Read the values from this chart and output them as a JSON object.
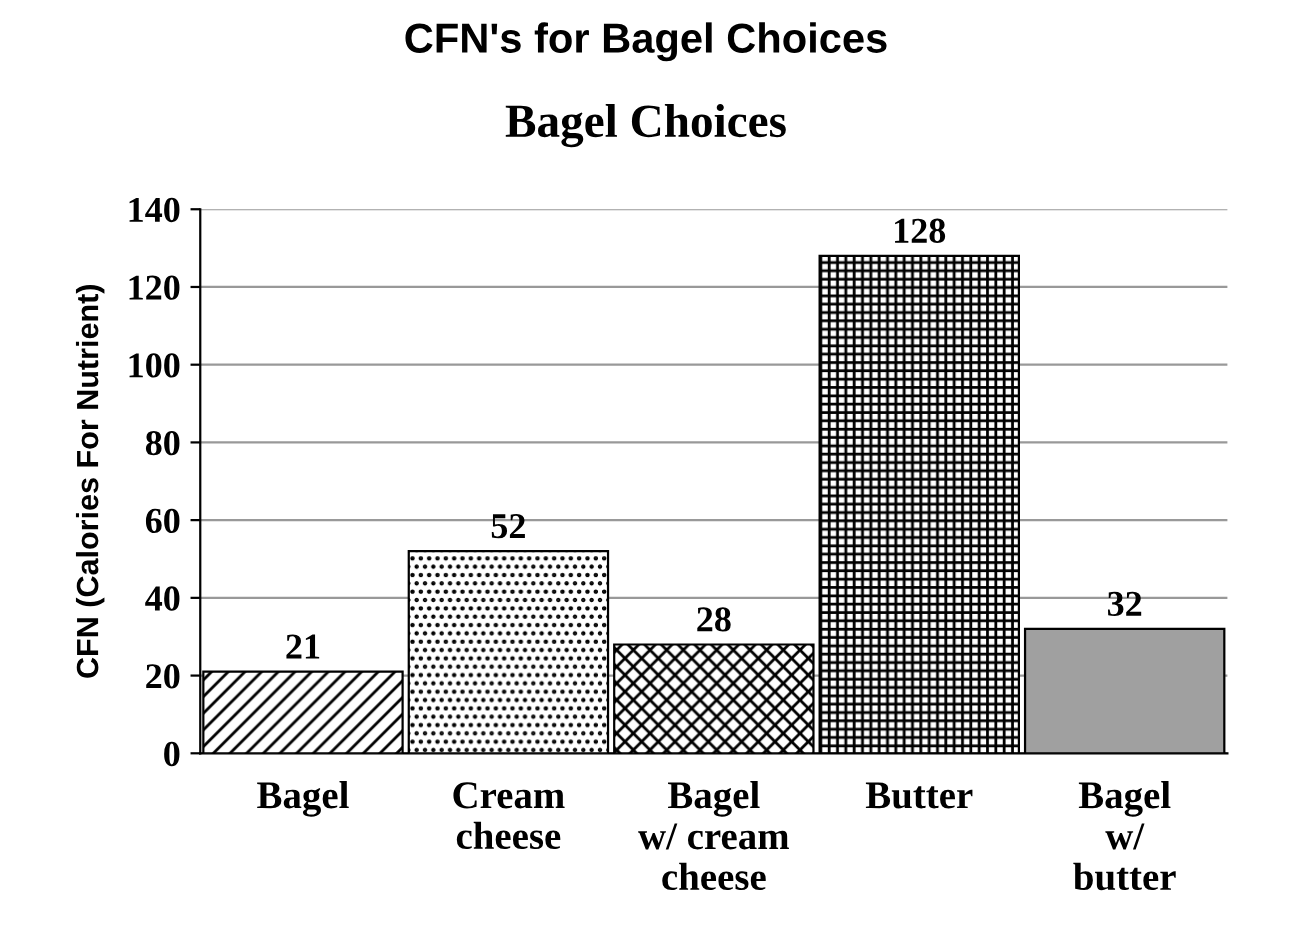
{
  "chart_data": {
    "type": "bar",
    "title": "CFN's for Bagel Choices",
    "subtitle": "Bagel Choices",
    "ylabel": "CFN (Calories For Nutrient)",
    "categories": [
      "Bagel",
      "Cream\ncheese",
      "Bagel\nw/ cream\ncheese",
      "Butter",
      "Bagel\nw/\nbutter"
    ],
    "values": [
      21,
      52,
      28,
      128,
      32
    ],
    "colors": [
      "#000000",
      "#000000",
      "#000000",
      "#000000",
      "#a0a0a0"
    ],
    "ylim": [
      0,
      140
    ],
    "yticks": [
      0,
      20,
      40,
      60,
      80,
      100,
      120,
      140
    ],
    "grid": "y",
    "data_labels": true
  }
}
